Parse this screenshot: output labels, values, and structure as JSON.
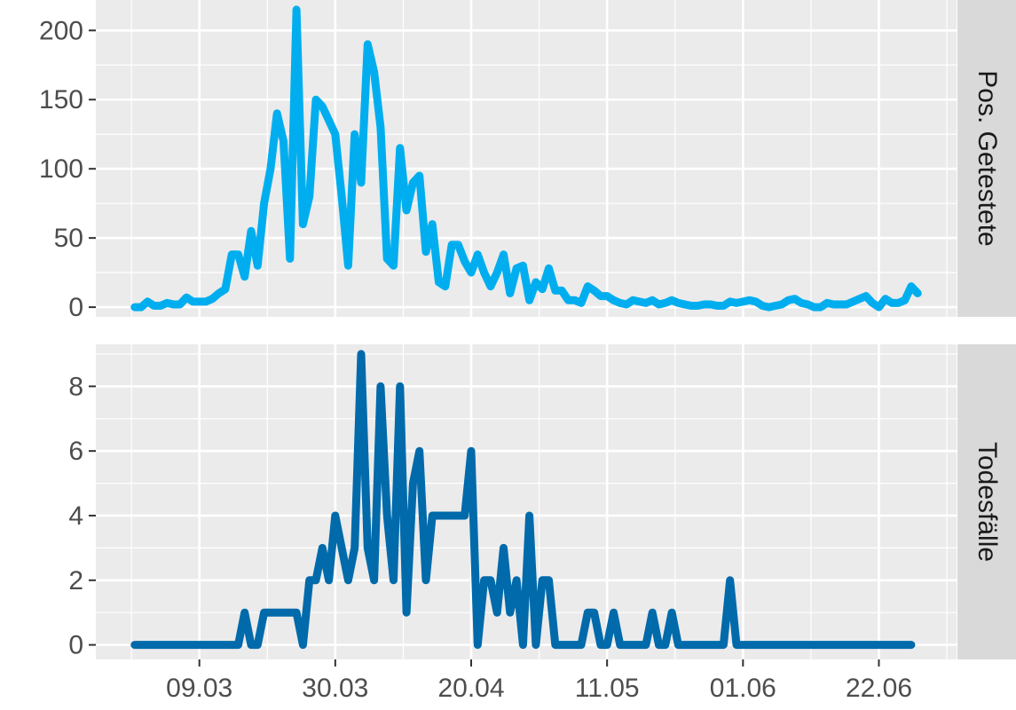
{
  "chart_data": [
    {
      "type": "line",
      "facet_label": "Pos. Getestete",
      "color": "#00AEEF",
      "x_start": "2020-02-28",
      "x_ticks": [
        {
          "date": "2020-03-09",
          "label": "09.03"
        },
        {
          "date": "2020-03-30",
          "label": "30.03"
        },
        {
          "date": "2020-04-20",
          "label": "20.04"
        },
        {
          "date": "2020-05-11",
          "label": "11.05"
        },
        {
          "date": "2020-06-01",
          "label": "01.06"
        },
        {
          "date": "2020-06-22",
          "label": "22.06"
        }
      ],
      "y_ticks": [
        0,
        50,
        100,
        150,
        200
      ],
      "ylim": [
        -7,
        222
      ],
      "values": [
        0,
        0,
        4,
        1,
        1,
        3,
        2,
        2,
        7,
        4,
        4,
        4,
        6,
        10,
        13,
        38,
        38,
        22,
        55,
        30,
        75,
        100,
        140,
        120,
        35,
        215,
        60,
        80,
        150,
        145,
        135,
        125,
        80,
        30,
        125,
        90,
        190,
        170,
        130,
        35,
        30,
        115,
        70,
        90,
        95,
        40,
        60,
        18,
        15,
        45,
        45,
        33,
        25,
        38,
        25,
        15,
        25,
        38,
        10,
        28,
        30,
        5,
        18,
        13,
        28,
        12,
        12,
        5,
        5,
        3,
        15,
        12,
        8,
        8,
        5,
        3,
        2,
        5,
        4,
        3,
        5,
        2,
        3,
        5,
        3,
        2,
        1,
        1,
        2,
        2,
        1,
        1,
        4,
        3,
        4,
        5,
        4,
        1,
        0,
        1,
        2,
        5,
        6,
        3,
        2,
        0,
        0,
        3,
        2,
        2,
        2,
        4,
        6,
        8,
        3,
        0,
        6,
        3,
        3,
        5,
        15,
        10
      ]
    },
    {
      "type": "line",
      "facet_label": "Todesfälle",
      "color": "#006AAB",
      "x_start": "2020-02-28",
      "x_ticks": [
        {
          "date": "2020-03-09",
          "label": "09.03"
        },
        {
          "date": "2020-03-30",
          "label": "30.03"
        },
        {
          "date": "2020-04-20",
          "label": "20.04"
        },
        {
          "date": "2020-05-11",
          "label": "11.05"
        },
        {
          "date": "2020-06-01",
          "label": "01.06"
        },
        {
          "date": "2020-06-22",
          "label": "22.06"
        }
      ],
      "y_ticks": [
        0,
        2,
        4,
        6,
        8
      ],
      "ylim": [
        -0.45,
        9.3
      ],
      "values": [
        0,
        0,
        0,
        0,
        0,
        0,
        0,
        0,
        0,
        0,
        0,
        0,
        0,
        0,
        0,
        0,
        0,
        1,
        0,
        0,
        1,
        1,
        1,
        1,
        1,
        1,
        0,
        2,
        2,
        3,
        2,
        4,
        3,
        2,
        3,
        9,
        3,
        2,
        8,
        4,
        2,
        8,
        1,
        5,
        6,
        2,
        4,
        4,
        4,
        4,
        4,
        4,
        6,
        0,
        2,
        2,
        1,
        3,
        1,
        2,
        0,
        4,
        0,
        2,
        2,
        0,
        0,
        0,
        0,
        0,
        1,
        1,
        0,
        0,
        1,
        0,
        0,
        0,
        0,
        0,
        1,
        0,
        0,
        1,
        0,
        0,
        0,
        0,
        0,
        0,
        0,
        0,
        2,
        0,
        0,
        0,
        0,
        0,
        0,
        0,
        0,
        0,
        0,
        0,
        0,
        0,
        0,
        0,
        0,
        0,
        0,
        0,
        0,
        0,
        0,
        0,
        0,
        0,
        0,
        0,
        0
      ]
    }
  ]
}
